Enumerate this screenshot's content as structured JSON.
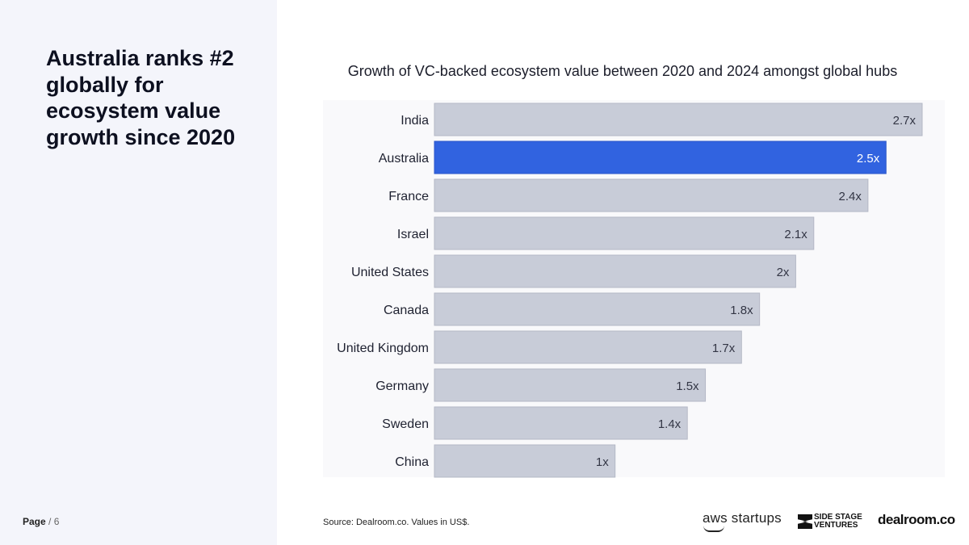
{
  "headline": "Australia ranks #2 globally for ecosystem value growth since 2020",
  "page": {
    "label": "Page",
    "separator": " / ",
    "number": "6"
  },
  "source": "Source:  Dealroom.co. Values in US$.",
  "logos": {
    "aws": "aws startups",
    "ssv_line1": "SIDE STAGE",
    "ssv_line2": "VENTURES",
    "dealroom": "dealroom.co"
  },
  "colors": {
    "bar": "#c8ccd8",
    "highlight": "#3163e0",
    "panel": "#f4f5fb"
  },
  "chart_data": {
    "type": "bar",
    "orientation": "horizontal",
    "title": "Growth of VC-backed ecosystem value between 2020 and 2024 amongst global hubs",
    "categories": [
      "India",
      "Australia",
      "France",
      "Israel",
      "United States",
      "Canada",
      "United Kingdom",
      "Germany",
      "Sweden",
      "China"
    ],
    "values": [
      2.7,
      2.5,
      2.4,
      2.1,
      2.0,
      1.8,
      1.7,
      1.5,
      1.4,
      1.0
    ],
    "value_labels": [
      "2.7x",
      "2.5x",
      "2.4x",
      "2.1x",
      "2x",
      "1.8x",
      "1.7x",
      "1.5x",
      "1.4x",
      "1x"
    ],
    "highlight": "Australia",
    "xlim": [
      0,
      2.7
    ],
    "xlabel": "",
    "ylabel": ""
  }
}
